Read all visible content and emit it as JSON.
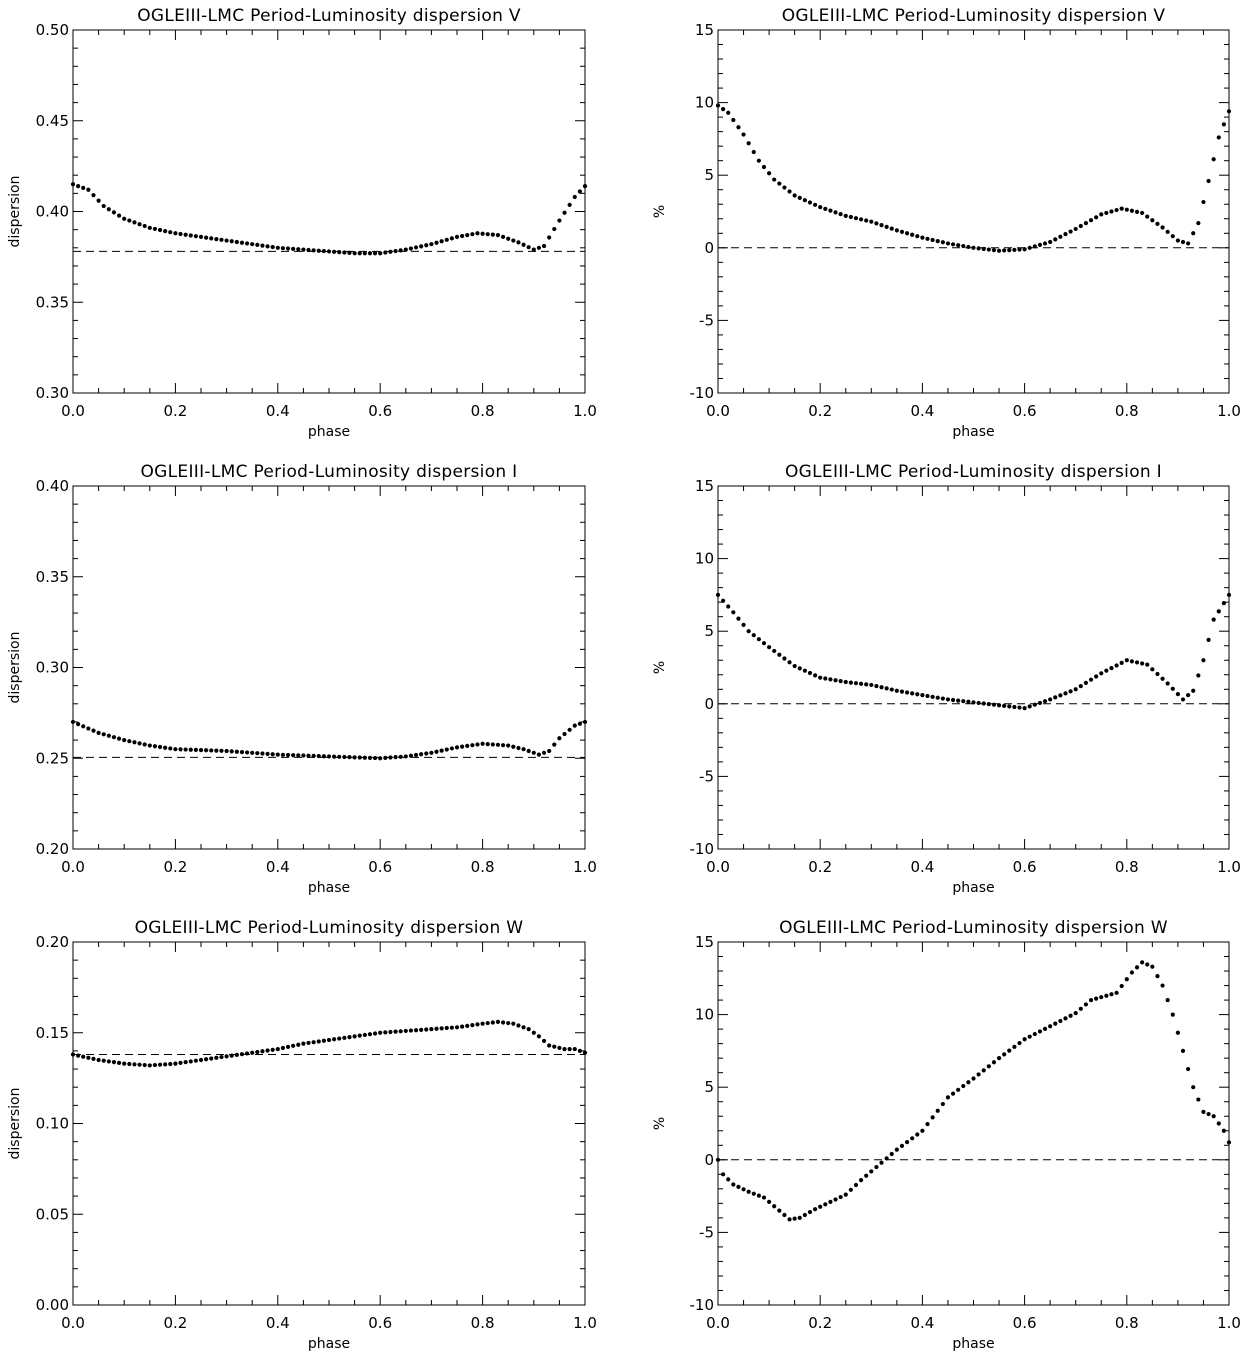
{
  "figure": {
    "panels": [
      {
        "id": "v-dispersion",
        "title": "OGLEIII-LMC Period-Luminosity dispersion V",
        "xlabel": "phase",
        "ylabel": "dispersion"
      },
      {
        "id": "v-percent",
        "title": "OGLEIII-LMC Period-Luminosity dispersion V",
        "xlabel": "phase",
        "ylabel": "%"
      },
      {
        "id": "i-dispersion",
        "title": "OGLEIII-LMC Period-Luminosity dispersion I",
        "xlabel": "phase",
        "ylabel": "dispersion"
      },
      {
        "id": "i-percent",
        "title": "OGLEIII-LMC Period-Luminosity dispersion I",
        "xlabel": "phase",
        "ylabel": "%"
      },
      {
        "id": "w-dispersion",
        "title": "OGLEIII-LMC Period-Luminosity dispersion W",
        "xlabel": "phase",
        "ylabel": "dispersion"
      },
      {
        "id": "w-percent",
        "title": "OGLEIII-LMC Period-Luminosity dispersion W",
        "xlabel": "phase",
        "ylabel": "%"
      }
    ]
  },
  "chart_data": [
    {
      "type": "scatter",
      "title": "OGLEIII-LMC Period-Luminosity dispersion V",
      "xlabel": "phase",
      "ylabel": "dispersion",
      "xlim": [
        0.0,
        1.0
      ],
      "ylim": [
        0.3,
        0.5
      ],
      "xticks": [
        "0.0",
        "0.2",
        "0.4",
        "0.6",
        "0.8",
        "1.0"
      ],
      "yticks": [
        "0.30",
        "0.35",
        "0.40",
        "0.45",
        "0.50"
      ],
      "reference_line": 0.378,
      "curve": [
        [
          0.0,
          0.415
        ],
        [
          0.03,
          0.412
        ],
        [
          0.06,
          0.403
        ],
        [
          0.1,
          0.396
        ],
        [
          0.15,
          0.391
        ],
        [
          0.2,
          0.388
        ],
        [
          0.3,
          0.384
        ],
        [
          0.4,
          0.38
        ],
        [
          0.5,
          0.378
        ],
        [
          0.55,
          0.377
        ],
        [
          0.6,
          0.377
        ],
        [
          0.65,
          0.379
        ],
        [
          0.7,
          0.382
        ],
        [
          0.75,
          0.386
        ],
        [
          0.79,
          0.388
        ],
        [
          0.83,
          0.387
        ],
        [
          0.87,
          0.383
        ],
        [
          0.9,
          0.379
        ],
        [
          0.92,
          0.381
        ],
        [
          0.95,
          0.395
        ],
        [
          0.98,
          0.408
        ],
        [
          1.0,
          0.414
        ]
      ]
    },
    {
      "type": "scatter",
      "title": "OGLEIII-LMC Period-Luminosity dispersion V",
      "xlabel": "phase",
      "ylabel": "%",
      "xlim": [
        0.0,
        1.0
      ],
      "ylim": [
        -10,
        15
      ],
      "xticks": [
        "0.0",
        "0.2",
        "0.4",
        "0.6",
        "0.8",
        "1.0"
      ],
      "yticks": [
        "-10",
        "-5",
        "0",
        "5",
        "10",
        "15"
      ],
      "reference_line": 0,
      "curve": [
        [
          0.0,
          9.8
        ],
        [
          0.02,
          9.3
        ],
        [
          0.05,
          7.8
        ],
        [
          0.08,
          6.0
        ],
        [
          0.11,
          4.7
        ],
        [
          0.15,
          3.6
        ],
        [
          0.2,
          2.8
        ],
        [
          0.25,
          2.2
        ],
        [
          0.3,
          1.8
        ],
        [
          0.35,
          1.2
        ],
        [
          0.4,
          0.7
        ],
        [
          0.45,
          0.3
        ],
        [
          0.5,
          0.0
        ],
        [
          0.55,
          -0.2
        ],
        [
          0.6,
          -0.1
        ],
        [
          0.65,
          0.4
        ],
        [
          0.7,
          1.3
        ],
        [
          0.75,
          2.3
        ],
        [
          0.79,
          2.7
        ],
        [
          0.83,
          2.4
        ],
        [
          0.87,
          1.4
        ],
        [
          0.9,
          0.5
        ],
        [
          0.92,
          0.3
        ],
        [
          0.94,
          1.7
        ],
        [
          0.96,
          4.6
        ],
        [
          0.98,
          7.6
        ],
        [
          1.0,
          9.4
        ]
      ]
    },
    {
      "type": "scatter",
      "title": "OGLEIII-LMC Period-Luminosity dispersion I",
      "xlabel": "phase",
      "ylabel": "dispersion",
      "xlim": [
        0.0,
        1.0
      ],
      "ylim": [
        0.2,
        0.4
      ],
      "xticks": [
        "0.0",
        "0.2",
        "0.4",
        "0.6",
        "0.8",
        "1.0"
      ],
      "yticks": [
        "0.20",
        "0.25",
        "0.30",
        "0.35",
        "0.40"
      ],
      "reference_line": 0.2505,
      "curve": [
        [
          0.0,
          0.27
        ],
        [
          0.05,
          0.264
        ],
        [
          0.1,
          0.26
        ],
        [
          0.15,
          0.257
        ],
        [
          0.2,
          0.255
        ],
        [
          0.3,
          0.254
        ],
        [
          0.4,
          0.252
        ],
        [
          0.5,
          0.251
        ],
        [
          0.55,
          0.2505
        ],
        [
          0.6,
          0.25
        ],
        [
          0.65,
          0.251
        ],
        [
          0.7,
          0.253
        ],
        [
          0.75,
          0.256
        ],
        [
          0.8,
          0.258
        ],
        [
          0.85,
          0.257
        ],
        [
          0.88,
          0.255
        ],
        [
          0.91,
          0.252
        ],
        [
          0.93,
          0.254
        ],
        [
          0.95,
          0.261
        ],
        [
          0.98,
          0.268
        ],
        [
          1.0,
          0.27
        ]
      ]
    },
    {
      "type": "scatter",
      "title": "OGLEIII-LMC Period-Luminosity dispersion I",
      "xlabel": "phase",
      "ylabel": "%",
      "xlim": [
        0.0,
        1.0
      ],
      "ylim": [
        -10,
        15
      ],
      "xticks": [
        "0.0",
        "0.2",
        "0.4",
        "0.6",
        "0.8",
        "1.0"
      ],
      "yticks": [
        "-10",
        "-5",
        "0",
        "5",
        "10",
        "15"
      ],
      "reference_line": 0,
      "curve": [
        [
          0.0,
          7.5
        ],
        [
          0.03,
          6.3
        ],
        [
          0.06,
          5.0
        ],
        [
          0.1,
          3.9
        ],
        [
          0.15,
          2.6
        ],
        [
          0.2,
          1.8
        ],
        [
          0.25,
          1.5
        ],
        [
          0.3,
          1.3
        ],
        [
          0.35,
          0.9
        ],
        [
          0.4,
          0.6
        ],
        [
          0.45,
          0.3
        ],
        [
          0.5,
          0.1
        ],
        [
          0.55,
          -0.1
        ],
        [
          0.6,
          -0.3
        ],
        [
          0.65,
          0.3
        ],
        [
          0.7,
          1.0
        ],
        [
          0.75,
          2.1
        ],
        [
          0.8,
          3.0
        ],
        [
          0.84,
          2.7
        ],
        [
          0.88,
          1.4
        ],
        [
          0.91,
          0.3
        ],
        [
          0.93,
          0.9
        ],
        [
          0.95,
          3.0
        ],
        [
          0.97,
          5.8
        ],
        [
          1.0,
          7.5
        ]
      ]
    },
    {
      "type": "scatter",
      "title": "OGLEIII-LMC Period-Luminosity dispersion W",
      "xlabel": "phase",
      "ylabel": "dispersion",
      "xlim": [
        0.0,
        1.0
      ],
      "ylim": [
        0.0,
        0.2
      ],
      "xticks": [
        "0.0",
        "0.2",
        "0.4",
        "0.6",
        "0.8",
        "1.0"
      ],
      "yticks": [
        "0.00",
        "0.05",
        "0.10",
        "0.15",
        "0.20"
      ],
      "reference_line": 0.138,
      "curve": [
        [
          0.0,
          0.138
        ],
        [
          0.05,
          0.135
        ],
        [
          0.1,
          0.133
        ],
        [
          0.15,
          0.132
        ],
        [
          0.2,
          0.133
        ],
        [
          0.25,
          0.135
        ],
        [
          0.3,
          0.137
        ],
        [
          0.35,
          0.139
        ],
        [
          0.4,
          0.141
        ],
        [
          0.45,
          0.144
        ],
        [
          0.5,
          0.146
        ],
        [
          0.55,
          0.148
        ],
        [
          0.6,
          0.15
        ],
        [
          0.65,
          0.151
        ],
        [
          0.7,
          0.152
        ],
        [
          0.75,
          0.153
        ],
        [
          0.8,
          0.155
        ],
        [
          0.83,
          0.156
        ],
        [
          0.86,
          0.155
        ],
        [
          0.89,
          0.152
        ],
        [
          0.91,
          0.148
        ],
        [
          0.93,
          0.143
        ],
        [
          0.96,
          0.141
        ],
        [
          0.98,
          0.141
        ],
        [
          1.0,
          0.139
        ]
      ]
    },
    {
      "type": "scatter",
      "title": "OGLEIII-LMC Period-Luminosity dispersion W",
      "xlabel": "phase",
      "ylabel": "%",
      "xlim": [
        0.0,
        1.0
      ],
      "ylim": [
        -10,
        15
      ],
      "xticks": [
        "0.0",
        "0.2",
        "0.4",
        "0.6",
        "0.8",
        "1.0"
      ],
      "yticks": [
        "-10",
        "-5",
        "0",
        "5",
        "10",
        "15"
      ],
      "reference_line": 0,
      "curve": [
        [
          0.0,
          0.0
        ],
        [
          0.01,
          -1.0
        ],
        [
          0.03,
          -1.7
        ],
        [
          0.06,
          -2.2
        ],
        [
          0.09,
          -2.6
        ],
        [
          0.12,
          -3.5
        ],
        [
          0.14,
          -4.1
        ],
        [
          0.16,
          -4.0
        ],
        [
          0.19,
          -3.4
        ],
        [
          0.22,
          -2.9
        ],
        [
          0.25,
          -2.4
        ],
        [
          0.28,
          -1.4
        ],
        [
          0.31,
          -0.5
        ],
        [
          0.35,
          0.7
        ],
        [
          0.4,
          2.0
        ],
        [
          0.45,
          4.3
        ],
        [
          0.5,
          5.6
        ],
        [
          0.55,
          7.0
        ],
        [
          0.6,
          8.3
        ],
        [
          0.65,
          9.2
        ],
        [
          0.7,
          10.1
        ],
        [
          0.73,
          11.0
        ],
        [
          0.78,
          11.5
        ],
        [
          0.81,
          12.9
        ],
        [
          0.83,
          13.6
        ],
        [
          0.85,
          13.3
        ],
        [
          0.87,
          12.0
        ],
        [
          0.89,
          10.0
        ],
        [
          0.91,
          7.5
        ],
        [
          0.93,
          5.0
        ],
        [
          0.95,
          3.3
        ],
        [
          0.97,
          3.0
        ],
        [
          0.99,
          2.0
        ],
        [
          1.0,
          1.2
        ]
      ]
    }
  ]
}
